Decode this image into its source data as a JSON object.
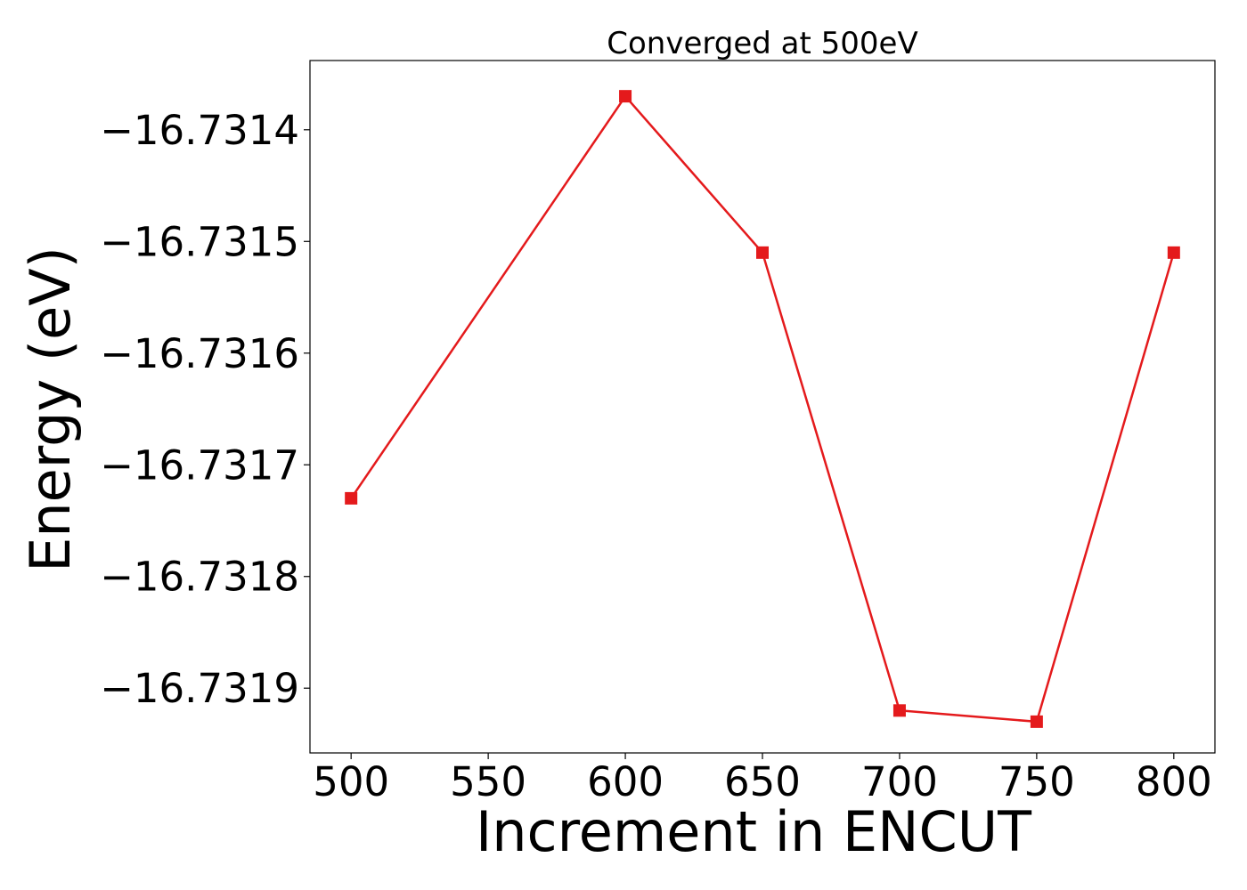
{
  "chart_data": {
    "type": "line",
    "title": "Converged at 500eV",
    "xlabel": "Increment in ENCUT",
    "ylabel": "Energy (eV)",
    "x": [
      500,
      600,
      650,
      700,
      750,
      800
    ],
    "series": [
      {
        "values": [
          -16.73173,
          -16.73137,
          -16.73151,
          -16.73192,
          -16.73193,
          -16.73151
        ],
        "color": "#e41a1c",
        "marker": "square"
      }
    ],
    "xticks": [
      500,
      550,
      600,
      650,
      700,
      750,
      800
    ],
    "xtick_labels": [
      "500",
      "550",
      "600",
      "650",
      "700",
      "750",
      "800"
    ],
    "yticks": [
      -16.7314,
      -16.7315,
      -16.7316,
      -16.7317,
      -16.7318,
      -16.7319
    ],
    "ytick_labels": [
      "−16.7314",
      "−16.7315",
      "−16.7316",
      "−16.7317",
      "−16.7318",
      "−16.7319"
    ],
    "xlim": [
      485,
      815
    ],
    "ylim": [
      -16.731958,
      -16.731338
    ],
    "grid": false,
    "legend": false
  }
}
